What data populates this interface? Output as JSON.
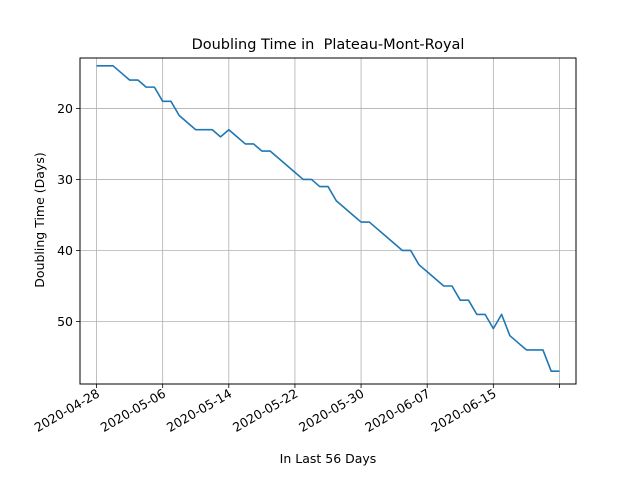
{
  "chart_data": {
    "type": "line",
    "title": "Doubling Time in  Plateau-Mont-Royal",
    "xlabel": "In Last 56 Days",
    "ylabel": "Doubling Time (Days)",
    "x_tick_labels": [
      "2020-04-28",
      "2020-05-06",
      "2020-05-14",
      "2020-05-22",
      "2020-05-30",
      "2020-06-07",
      "2020-06-15"
    ],
    "y_ticks": [
      20,
      30,
      40,
      50
    ],
    "y_inverted": true,
    "ylim": [
      12.9,
      58.8
    ],
    "xlim": [
      "2020-04-26",
      "2020-06-25"
    ],
    "grid": true,
    "series": [
      {
        "color": "#1f77b4",
        "x": [
          "2020-04-28",
          "2020-04-29",
          "2020-04-30",
          "2020-05-01",
          "2020-05-02",
          "2020-05-03",
          "2020-05-04",
          "2020-05-05",
          "2020-05-06",
          "2020-05-07",
          "2020-05-08",
          "2020-05-09",
          "2020-05-10",
          "2020-05-11",
          "2020-05-12",
          "2020-05-13",
          "2020-05-14",
          "2020-05-15",
          "2020-05-16",
          "2020-05-17",
          "2020-05-18",
          "2020-05-19",
          "2020-05-20",
          "2020-05-21",
          "2020-05-22",
          "2020-05-23",
          "2020-05-24",
          "2020-05-25",
          "2020-05-26",
          "2020-05-27",
          "2020-05-28",
          "2020-05-29",
          "2020-05-30",
          "2020-05-31",
          "2020-06-01",
          "2020-06-02",
          "2020-06-03",
          "2020-06-04",
          "2020-06-05",
          "2020-06-06",
          "2020-06-07",
          "2020-06-08",
          "2020-06-09",
          "2020-06-10",
          "2020-06-11",
          "2020-06-12",
          "2020-06-13",
          "2020-06-14",
          "2020-06-15",
          "2020-06-16",
          "2020-06-17",
          "2020-06-18",
          "2020-06-19",
          "2020-06-20",
          "2020-06-21",
          "2020-06-22",
          "2020-06-23"
        ],
        "y": [
          14,
          14,
          14,
          15,
          16,
          16,
          17,
          17,
          19,
          19,
          21,
          22,
          23,
          23,
          23,
          24,
          23,
          24,
          25,
          25,
          26,
          26,
          27,
          28,
          29,
          30,
          30,
          31,
          31,
          33,
          34,
          35,
          36,
          36,
          37,
          38,
          39,
          40,
          40,
          42,
          43,
          44,
          45,
          45,
          47,
          47,
          49,
          49,
          51,
          49,
          52,
          53,
          54,
          54,
          54,
          57,
          57
        ]
      }
    ]
  }
}
